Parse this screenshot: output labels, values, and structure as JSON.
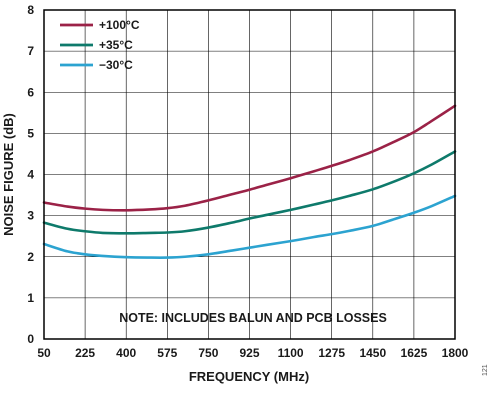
{
  "chart_data": {
    "type": "line",
    "xlabel": "FREQUENCY (MHz)",
    "ylabel": "NOISE FIGURE (dB)",
    "x_ticks": [
      50,
      225,
      400,
      575,
      750,
      925,
      1100,
      1275,
      1450,
      1625,
      1800
    ],
    "y_ticks": [
      0,
      1,
      2,
      3,
      4,
      5,
      6,
      7,
      8
    ],
    "xlim": [
      50,
      1800
    ],
    "ylim": [
      0,
      8
    ],
    "grid": true,
    "legend_position": "top-left",
    "annotation": "NOTE: INCLUDES BALUN AND PCB LOSSES",
    "figure_id": "121",
    "series": [
      {
        "name": "+100°C",
        "color": "#9b2247",
        "x": [
          50,
          150,
          225,
          300,
          400,
          500,
          575,
          650,
          750,
          850,
          925,
          1000,
          1100,
          1200,
          1275,
          1350,
          1450,
          1550,
          1625,
          1700,
          1800
        ],
        "y": [
          3.32,
          3.22,
          3.17,
          3.14,
          3.13,
          3.15,
          3.18,
          3.24,
          3.37,
          3.52,
          3.63,
          3.75,
          3.91,
          4.08,
          4.21,
          4.35,
          4.56,
          4.82,
          5.03,
          5.3,
          5.67
        ]
      },
      {
        "name": "+35°C",
        "color": "#0e7a6b",
        "x": [
          50,
          150,
          225,
          300,
          400,
          500,
          575,
          650,
          750,
          850,
          925,
          1000,
          1100,
          1200,
          1275,
          1350,
          1450,
          1550,
          1625,
          1700,
          1800
        ],
        "y": [
          2.83,
          2.68,
          2.62,
          2.58,
          2.57,
          2.58,
          2.59,
          2.62,
          2.71,
          2.83,
          2.93,
          3.02,
          3.14,
          3.27,
          3.37,
          3.48,
          3.64,
          3.85,
          4.03,
          4.24,
          4.56
        ]
      },
      {
        "name": "−30°C",
        "color": "#2ca3d0",
        "x": [
          50,
          150,
          225,
          300,
          400,
          500,
          575,
          650,
          750,
          850,
          925,
          1000,
          1100,
          1200,
          1275,
          1350,
          1450,
          1550,
          1625,
          1700,
          1800
        ],
        "y": [
          2.31,
          2.13,
          2.06,
          2.02,
          1.99,
          1.98,
          1.98,
          2.0,
          2.06,
          2.15,
          2.22,
          2.29,
          2.38,
          2.48,
          2.55,
          2.63,
          2.75,
          2.93,
          3.07,
          3.23,
          3.48
        ]
      }
    ]
  }
}
